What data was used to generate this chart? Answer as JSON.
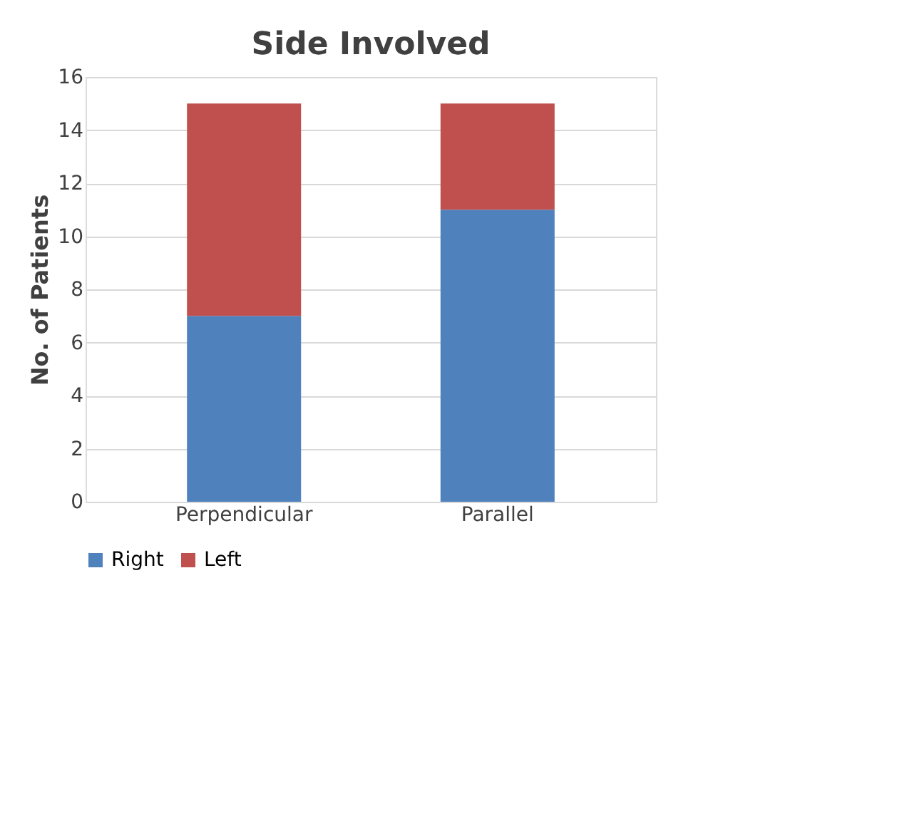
{
  "chart_data": {
    "type": "bar",
    "title": "Side Involved",
    "ylabel": "No. of Patients",
    "categories": [
      "Perpendicular",
      "Parallel"
    ],
    "stacked": true,
    "series": [
      {
        "name": "Right",
        "color": "#4f81bd",
        "values": [
          7,
          11
        ]
      },
      {
        "name": "Left",
        "color": "#c0504d",
        "values": [
          8,
          4
        ]
      }
    ],
    "ylim": [
      0,
      16
    ],
    "yticks": [
      0,
      2,
      4,
      6,
      8,
      10,
      12,
      14,
      16
    ],
    "grid": "y",
    "legend": "bottom"
  }
}
